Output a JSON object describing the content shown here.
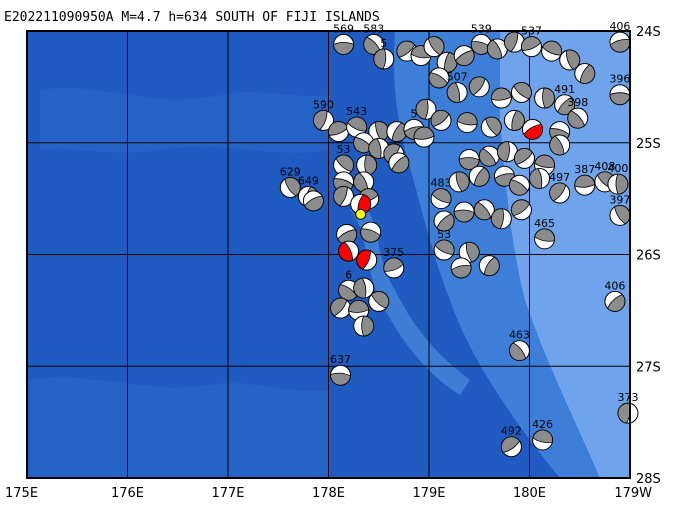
{
  "title": "E202211090950A  M=4.7  h=634  SOUTH OF FIJI ISLANDS",
  "axes": {
    "x_ticks": [
      "175E",
      "176E",
      "177E",
      "178E",
      "179E",
      "180E",
      "179W"
    ],
    "y_ticks": [
      "24S",
      "25S",
      "26S",
      "27S",
      "28S"
    ],
    "lon_range": [
      175,
      181
    ],
    "lat_range": [
      -24,
      -28
    ]
  },
  "colors": {
    "ocean_deep": "#1f5bc0",
    "ocean_mid": "#3d7fd8",
    "ocean_shallow": "#6fa4ec",
    "mechanism_fill_normal": "#8c8c8c",
    "mechanism_fill_highlight": "#ff0000",
    "epicenter": "#ffff00",
    "grid": "#000000"
  },
  "epicenter": {
    "lon": 178.32,
    "lat": -25.64
  },
  "events": [
    {
      "lon": 178.15,
      "lat": -24.12,
      "depth": "569",
      "hl": false
    },
    {
      "lon": 178.45,
      "lat": -24.12,
      "depth": "583",
      "hl": false
    },
    {
      "lon": 178.55,
      "lat": -24.25,
      "depth": "5",
      "hl": false
    },
    {
      "lon": 178.78,
      "lat": -24.18,
      "depth": "",
      "hl": false
    },
    {
      "lon": 178.92,
      "lat": -24.22,
      "depth": "",
      "hl": false
    },
    {
      "lon": 179.05,
      "lat": -24.14,
      "depth": "",
      "hl": false
    },
    {
      "lon": 179.18,
      "lat": -24.28,
      "depth": "",
      "hl": false
    },
    {
      "lon": 179.35,
      "lat": -24.22,
      "depth": "",
      "hl": false
    },
    {
      "lon": 179.52,
      "lat": -24.12,
      "depth": "539",
      "hl": false
    },
    {
      "lon": 179.68,
      "lat": -24.16,
      "depth": "",
      "hl": false
    },
    {
      "lon": 179.85,
      "lat": -24.1,
      "depth": "",
      "hl": false
    },
    {
      "lon": 180.02,
      "lat": -24.14,
      "depth": "537",
      "hl": false
    },
    {
      "lon": 180.22,
      "lat": -24.18,
      "depth": "",
      "hl": false
    },
    {
      "lon": 180.4,
      "lat": -24.26,
      "depth": "",
      "hl": false
    },
    {
      "lon": 180.55,
      "lat": -24.38,
      "depth": "",
      "hl": false
    },
    {
      "lon": 180.9,
      "lat": -24.1,
      "depth": "406",
      "hl": false
    },
    {
      "lon": 179.1,
      "lat": -24.42,
      "depth": "",
      "hl": false
    },
    {
      "lon": 179.28,
      "lat": -24.55,
      "depth": "507",
      "hl": false
    },
    {
      "lon": 179.5,
      "lat": -24.5,
      "depth": "",
      "hl": false
    },
    {
      "lon": 179.72,
      "lat": -24.6,
      "depth": "",
      "hl": false
    },
    {
      "lon": 179.92,
      "lat": -24.55,
      "depth": "",
      "hl": false
    },
    {
      "lon": 180.15,
      "lat": -24.6,
      "depth": "",
      "hl": false
    },
    {
      "lon": 180.35,
      "lat": -24.66,
      "depth": "491",
      "hl": false
    },
    {
      "lon": 180.9,
      "lat": -24.57,
      "depth": "396",
      "hl": false
    },
    {
      "lon": 180.48,
      "lat": -24.78,
      "depth": "398",
      "hl": false
    },
    {
      "lon": 178.97,
      "lat": -24.7,
      "depth": "",
      "hl": false
    },
    {
      "lon": 179.12,
      "lat": -24.8,
      "depth": "",
      "hl": false
    },
    {
      "lon": 179.38,
      "lat": -24.82,
      "depth": "",
      "hl": false
    },
    {
      "lon": 179.62,
      "lat": -24.86,
      "depth": "",
      "hl": false
    },
    {
      "lon": 179.85,
      "lat": -24.8,
      "depth": "",
      "hl": false
    },
    {
      "lon": 180.03,
      "lat": -24.88,
      "depth": "",
      "hl": true
    },
    {
      "lon": 180.3,
      "lat": -24.9,
      "depth": "",
      "hl": false
    },
    {
      "lon": 180.3,
      "lat": -25.02,
      "depth": "",
      "hl": false
    },
    {
      "lon": 177.95,
      "lat": -24.8,
      "depth": "590",
      "hl": false
    },
    {
      "lon": 178.1,
      "lat": -24.9,
      "depth": "",
      "hl": false
    },
    {
      "lon": 178.28,
      "lat": -24.86,
      "depth": "543",
      "hl": false
    },
    {
      "lon": 178.5,
      "lat": -24.9,
      "depth": "",
      "hl": false
    },
    {
      "lon": 178.68,
      "lat": -24.9,
      "depth": "",
      "hl": false
    },
    {
      "lon": 178.85,
      "lat": -24.88,
      "depth": "5",
      "hl": false
    },
    {
      "lon": 178.35,
      "lat": -25.0,
      "depth": "",
      "hl": false
    },
    {
      "lon": 178.5,
      "lat": -25.05,
      "depth": "",
      "hl": false
    },
    {
      "lon": 178.65,
      "lat": -25.1,
      "depth": "",
      "hl": false
    },
    {
      "lon": 178.95,
      "lat": -24.95,
      "depth": "",
      "hl": false
    },
    {
      "lon": 178.15,
      "lat": -25.2,
      "depth": "53",
      "hl": false
    },
    {
      "lon": 178.38,
      "lat": -25.2,
      "depth": "",
      "hl": false
    },
    {
      "lon": 178.7,
      "lat": -25.18,
      "depth": "",
      "hl": false
    },
    {
      "lon": 179.4,
      "lat": -25.15,
      "depth": "",
      "hl": false
    },
    {
      "lon": 179.6,
      "lat": -25.12,
      "depth": "",
      "hl": false
    },
    {
      "lon": 179.78,
      "lat": -25.08,
      "depth": "",
      "hl": false
    },
    {
      "lon": 179.95,
      "lat": -25.14,
      "depth": "",
      "hl": false
    },
    {
      "lon": 180.15,
      "lat": -25.2,
      "depth": "",
      "hl": false
    },
    {
      "lon": 177.62,
      "lat": -25.4,
      "depth": "629",
      "hl": false
    },
    {
      "lon": 177.8,
      "lat": -25.48,
      "depth": "649",
      "hl": false
    },
    {
      "lon": 177.85,
      "lat": -25.52,
      "depth": "",
      "hl": false
    },
    {
      "lon": 178.15,
      "lat": -25.35,
      "depth": "",
      "hl": false
    },
    {
      "lon": 178.35,
      "lat": -25.35,
      "depth": "",
      "hl": false
    },
    {
      "lon": 178.15,
      "lat": -25.48,
      "depth": "",
      "hl": false
    },
    {
      "lon": 178.4,
      "lat": -25.5,
      "depth": "",
      "hl": false
    },
    {
      "lon": 179.12,
      "lat": -25.5,
      "depth": "483",
      "hl": false
    },
    {
      "lon": 179.3,
      "lat": -25.35,
      "depth": "",
      "hl": false
    },
    {
      "lon": 179.5,
      "lat": -25.3,
      "depth": "",
      "hl": false
    },
    {
      "lon": 179.75,
      "lat": -25.3,
      "depth": "",
      "hl": false
    },
    {
      "lon": 179.9,
      "lat": -25.38,
      "depth": "",
      "hl": false
    },
    {
      "lon": 180.1,
      "lat": -25.32,
      "depth": "",
      "hl": false
    },
    {
      "lon": 180.3,
      "lat": -25.45,
      "depth": "497",
      "hl": false
    },
    {
      "lon": 180.55,
      "lat": -25.38,
      "depth": "387",
      "hl": false
    },
    {
      "lon": 180.75,
      "lat": -25.35,
      "depth": "408",
      "hl": false
    },
    {
      "lon": 180.88,
      "lat": -25.37,
      "depth": "400",
      "hl": false
    },
    {
      "lon": 179.15,
      "lat": -25.7,
      "depth": "",
      "hl": false
    },
    {
      "lon": 179.35,
      "lat": -25.62,
      "depth": "",
      "hl": false
    },
    {
      "lon": 179.55,
      "lat": -25.6,
      "depth": "",
      "hl": false
    },
    {
      "lon": 179.72,
      "lat": -25.68,
      "depth": "",
      "hl": false
    },
    {
      "lon": 179.92,
      "lat": -25.6,
      "depth": "",
      "hl": false
    },
    {
      "lon": 180.15,
      "lat": -25.86,
      "depth": "465",
      "hl": false
    },
    {
      "lon": 180.9,
      "lat": -25.65,
      "depth": "397",
      "hl": false
    },
    {
      "lon": 178.32,
      "lat": -25.55,
      "depth": "",
      "hl": true
    },
    {
      "lon": 178.18,
      "lat": -25.82,
      "depth": "",
      "hl": false
    },
    {
      "lon": 178.42,
      "lat": -25.8,
      "depth": "",
      "hl": false
    },
    {
      "lon": 178.2,
      "lat": -25.97,
      "depth": "",
      "hl": true
    },
    {
      "lon": 178.38,
      "lat": -26.05,
      "depth": "",
      "hl": true
    },
    {
      "lon": 178.65,
      "lat": -26.12,
      "depth": "375",
      "hl": false
    },
    {
      "lon": 179.15,
      "lat": -25.96,
      "depth": "53",
      "hl": false
    },
    {
      "lon": 179.4,
      "lat": -25.98,
      "depth": "",
      "hl": false
    },
    {
      "lon": 179.6,
      "lat": -26.1,
      "depth": "",
      "hl": false
    },
    {
      "lon": 179.32,
      "lat": -26.12,
      "depth": "",
      "hl": false
    },
    {
      "lon": 178.2,
      "lat": -26.32,
      "depth": "6",
      "hl": false
    },
    {
      "lon": 178.35,
      "lat": -26.3,
      "depth": "",
      "hl": false
    },
    {
      "lon": 178.12,
      "lat": -26.48,
      "depth": "",
      "hl": false
    },
    {
      "lon": 178.3,
      "lat": -26.5,
      "depth": "",
      "hl": false
    },
    {
      "lon": 178.5,
      "lat": -26.42,
      "depth": "",
      "hl": false
    },
    {
      "lon": 178.35,
      "lat": -26.64,
      "depth": "",
      "hl": false
    },
    {
      "lon": 180.85,
      "lat": -26.42,
      "depth": "406",
      "hl": false
    },
    {
      "lon": 178.12,
      "lat": -27.08,
      "depth": "637",
      "hl": false
    },
    {
      "lon": 179.9,
      "lat": -26.86,
      "depth": "463",
      "hl": false
    },
    {
      "lon": 180.98,
      "lat": -27.42,
      "depth": "373",
      "hl": false
    },
    {
      "lon": 179.82,
      "lat": -27.72,
      "depth": "492",
      "hl": false
    },
    {
      "lon": 180.13,
      "lat": -27.66,
      "depth": "426",
      "hl": false
    }
  ]
}
